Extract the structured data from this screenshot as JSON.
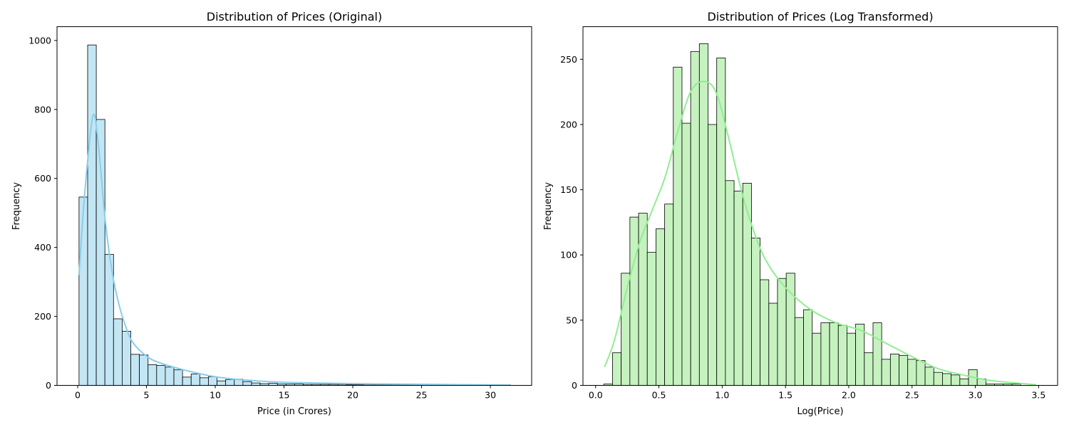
{
  "chart_data": [
    {
      "type": "bar",
      "title": "Distribution of Prices (Original)",
      "xlabel": "Price (in Crores)",
      "ylabel": "Frequency",
      "xlim": [
        -1.5,
        33.0
      ],
      "ylim": [
        0,
        1040
      ],
      "xticks": [
        0,
        5,
        10,
        15,
        20,
        25,
        30
      ],
      "yticks": [
        0,
        200,
        400,
        600,
        800,
        1000
      ],
      "bar_color": "#c3e6f4",
      "kde_color": "#87ceeb",
      "bins": {
        "start": 0.1,
        "width": 0.627,
        "counts": [
          546,
          987,
          771,
          380,
          193,
          157,
          90,
          88,
          60,
          58,
          53,
          45,
          24,
          33,
          22,
          25,
          13,
          17,
          18,
          11,
          7,
          5,
          6,
          4,
          4,
          4,
          3,
          3,
          3,
          3,
          3,
          2,
          2,
          1,
          1,
          1,
          1,
          1,
          1,
          1,
          1,
          0,
          0,
          1,
          0,
          0,
          1,
          0,
          0,
          1
        ]
      },
      "kde": {
        "x": [
          0.1,
          0.5,
          1.1,
          1.5,
          2.0,
          2.5,
          3.0,
          3.5,
          4.0,
          5.0,
          6.0,
          8.0,
          10.0,
          12.0,
          15.0,
          20.0,
          25.0,
          31.4
        ],
        "y": [
          320,
          550,
          780,
          700,
          480,
          330,
          235,
          170,
          125,
          85,
          65,
          42,
          25,
          16,
          9,
          5,
          3,
          1
        ]
      }
    },
    {
      "type": "bar",
      "title": "Distribution of Prices (Log Transformed)",
      "xlabel": "Log(Price)",
      "ylabel": "Frequency",
      "xlim": [
        -0.1,
        3.65
      ],
      "ylim": [
        0,
        275
      ],
      "xticks": [
        0.0,
        0.5,
        1.0,
        1.5,
        2.0,
        2.5,
        3.0,
        3.5
      ],
      "xtick_labels": [
        "0.0",
        "0.5",
        "1.0",
        "1.5",
        "2.0",
        "2.5",
        "3.0",
        "3.5"
      ],
      "yticks": [
        0,
        50,
        100,
        150,
        200,
        250
      ],
      "bar_color": "#c6f2c0",
      "kde_color": "#90ee90",
      "bins": {
        "start": 0.065,
        "width": 0.0686,
        "counts": [
          1,
          25,
          86,
          129,
          132,
          102,
          120,
          139,
          244,
          201,
          256,
          262,
          200,
          251,
          157,
          149,
          155,
          113,
          81,
          63,
          82,
          86,
          52,
          58,
          40,
          48,
          48,
          46,
          40,
          47,
          25,
          48,
          20,
          24,
          23,
          20,
          19,
          14,
          10,
          9,
          8,
          5,
          12,
          5,
          1,
          1,
          1,
          1,
          0,
          0
        ]
      },
      "kde": {
        "x": [
          0.07,
          0.15,
          0.25,
          0.35,
          0.45,
          0.55,
          0.65,
          0.75,
          0.85,
          0.95,
          1.05,
          1.15,
          1.25,
          1.35,
          1.5,
          1.7,
          1.9,
          2.1,
          2.3,
          2.5,
          2.7,
          2.9,
          3.1,
          3.3,
          3.48
        ],
        "y": [
          14,
          35,
          75,
          110,
          135,
          160,
          195,
          225,
          233,
          225,
          190,
          150,
          118,
          95,
          75,
          58,
          48,
          42,
          32,
          22,
          13,
          8,
          4,
          2,
          0.5
        ]
      }
    }
  ]
}
